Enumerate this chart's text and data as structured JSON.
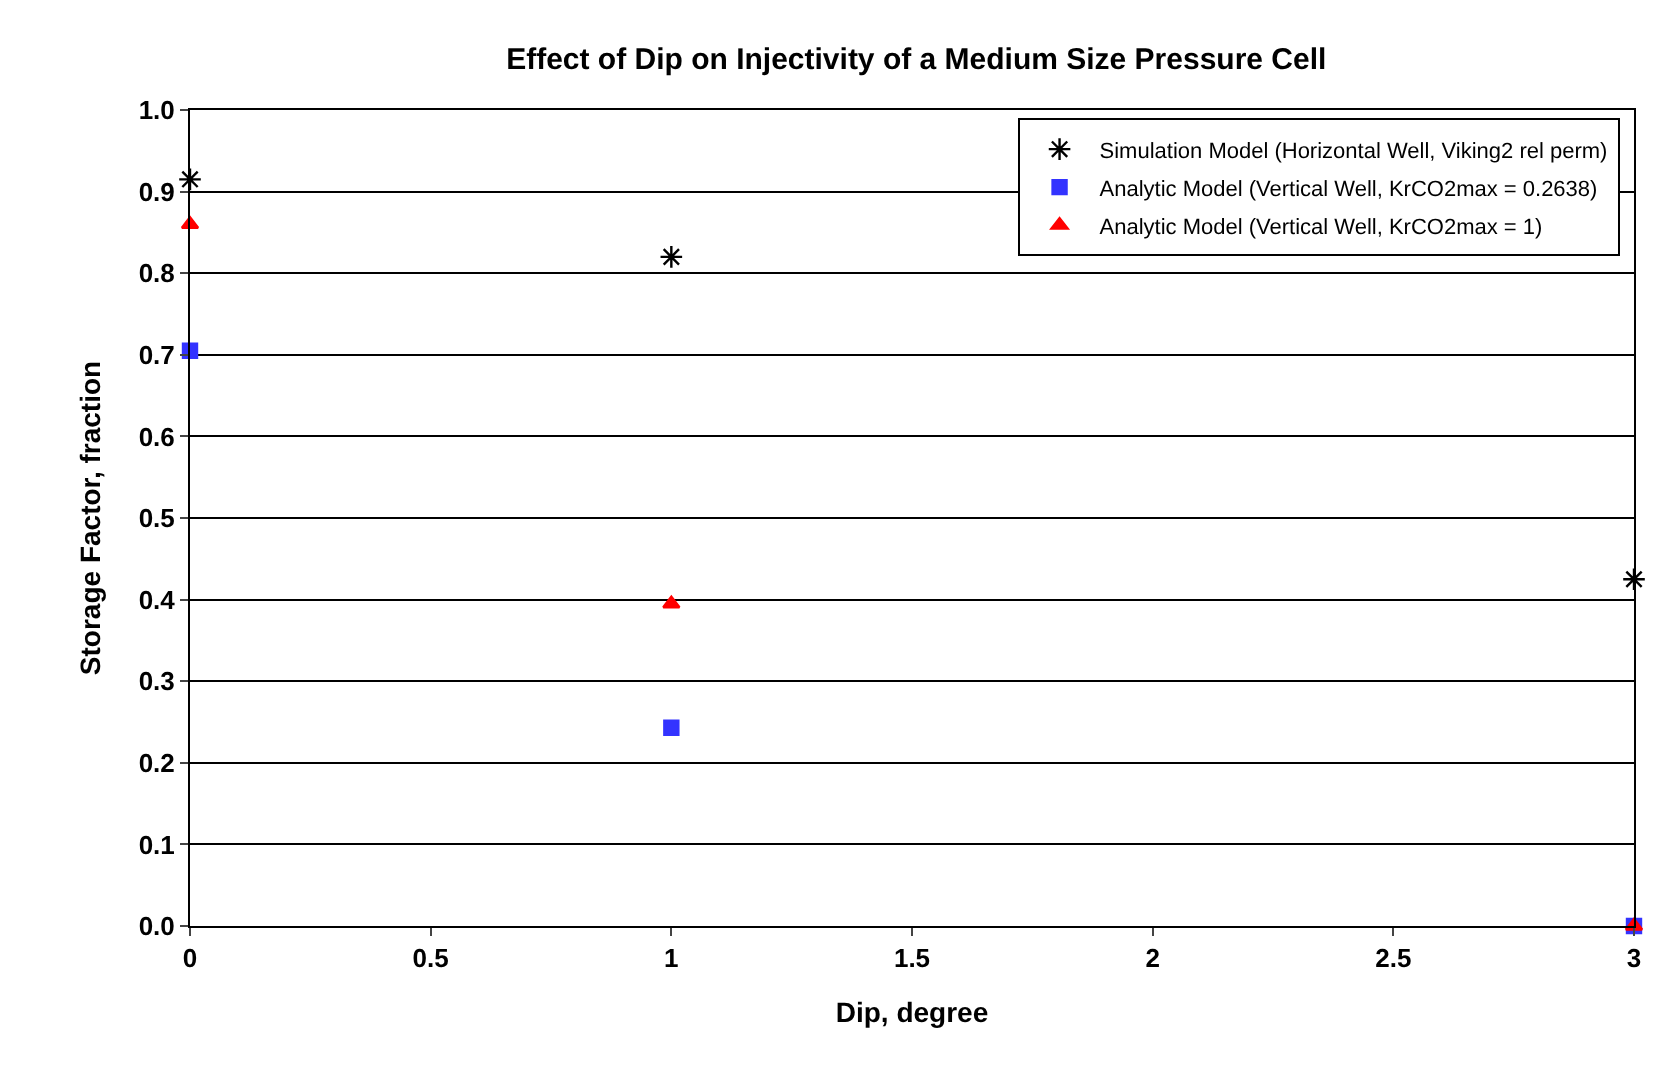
{
  "chart_data": {
    "type": "scatter",
    "title": "Effect of Dip on Injectivity of a Medium Size Pressure Cell",
    "xlabel": "Dip, degree",
    "ylabel": "Storage Factor, fraction",
    "series": [
      {
        "name": "Simulation Model (Horizontal Well, Viking2 rel perm)",
        "color": "#000000",
        "marker": "cross",
        "x": [
          0,
          1,
          3
        ],
        "values": [
          0.915,
          0.82,
          0.425
        ]
      },
      {
        "name": "Analytic Model (Vertical Well, KrCO2max = 0.2638)",
        "color": "#3333ff",
        "marker": "square",
        "x": [
          0,
          1,
          3
        ],
        "values": [
          0.705,
          0.243,
          0.0
        ]
      },
      {
        "name": "Analytic Model (Vertical Well, KrCO2max = 1)",
        "color": "#ff0000",
        "marker": "triangle",
        "x": [
          0,
          1,
          3
        ],
        "values": [
          0.86,
          0.395,
          0.0
        ]
      }
    ],
    "xlim": [
      0,
      3
    ],
    "xticks": [
      {
        "value": 0,
        "label": "0"
      },
      0.5,
      {
        "value": 1,
        "label": "1"
      },
      1.5,
      {
        "value": 2,
        "label": "2"
      },
      2.5,
      {
        "value": 3,
        "label": "3"
      }
    ],
    "ylim": [
      0,
      1
    ],
    "yticks": [
      {
        "value": 0,
        "label": "0.0"
      },
      0.1,
      0.2,
      0.3,
      0.4,
      0.5,
      0.6,
      0.7,
      0.8,
      0.9,
      {
        "value": 1,
        "label": "1.0"
      }
    ],
    "grid": "y",
    "legend": "top right"
  }
}
